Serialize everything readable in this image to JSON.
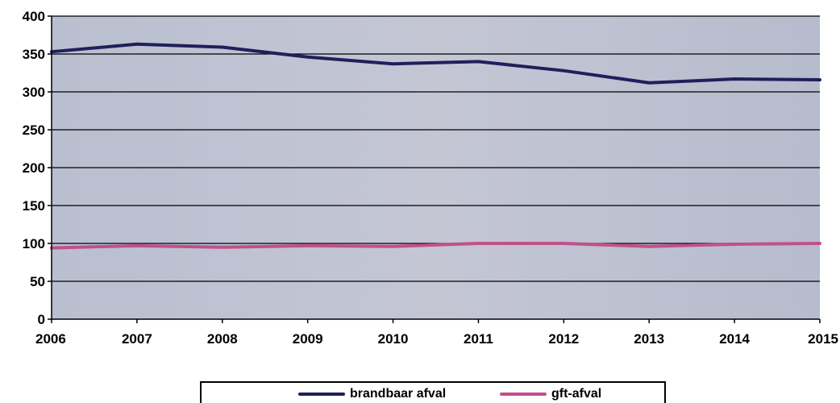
{
  "chart_data": {
    "type": "line",
    "x": [
      "2006",
      "2007",
      "2008",
      "2009",
      "2010",
      "2011",
      "2012",
      "2013",
      "2014",
      "2015"
    ],
    "series": [
      {
        "name": "brandbaar afval",
        "color": "#1f1f5c",
        "values": [
          353,
          363,
          359,
          346,
          337,
          340,
          328,
          312,
          317,
          316
        ]
      },
      {
        "name": "gft-afval",
        "color": "#c0508c",
        "values": [
          94,
          97,
          95,
          97,
          96,
          100,
          100,
          96,
          99,
          100
        ]
      }
    ],
    "y_ticks": [
      "0",
      "50",
      "100",
      "150",
      "200",
      "250",
      "300",
      "350",
      "400"
    ],
    "ylim": [
      0,
      400
    ],
    "grid": true,
    "legend_position": "bottom"
  }
}
